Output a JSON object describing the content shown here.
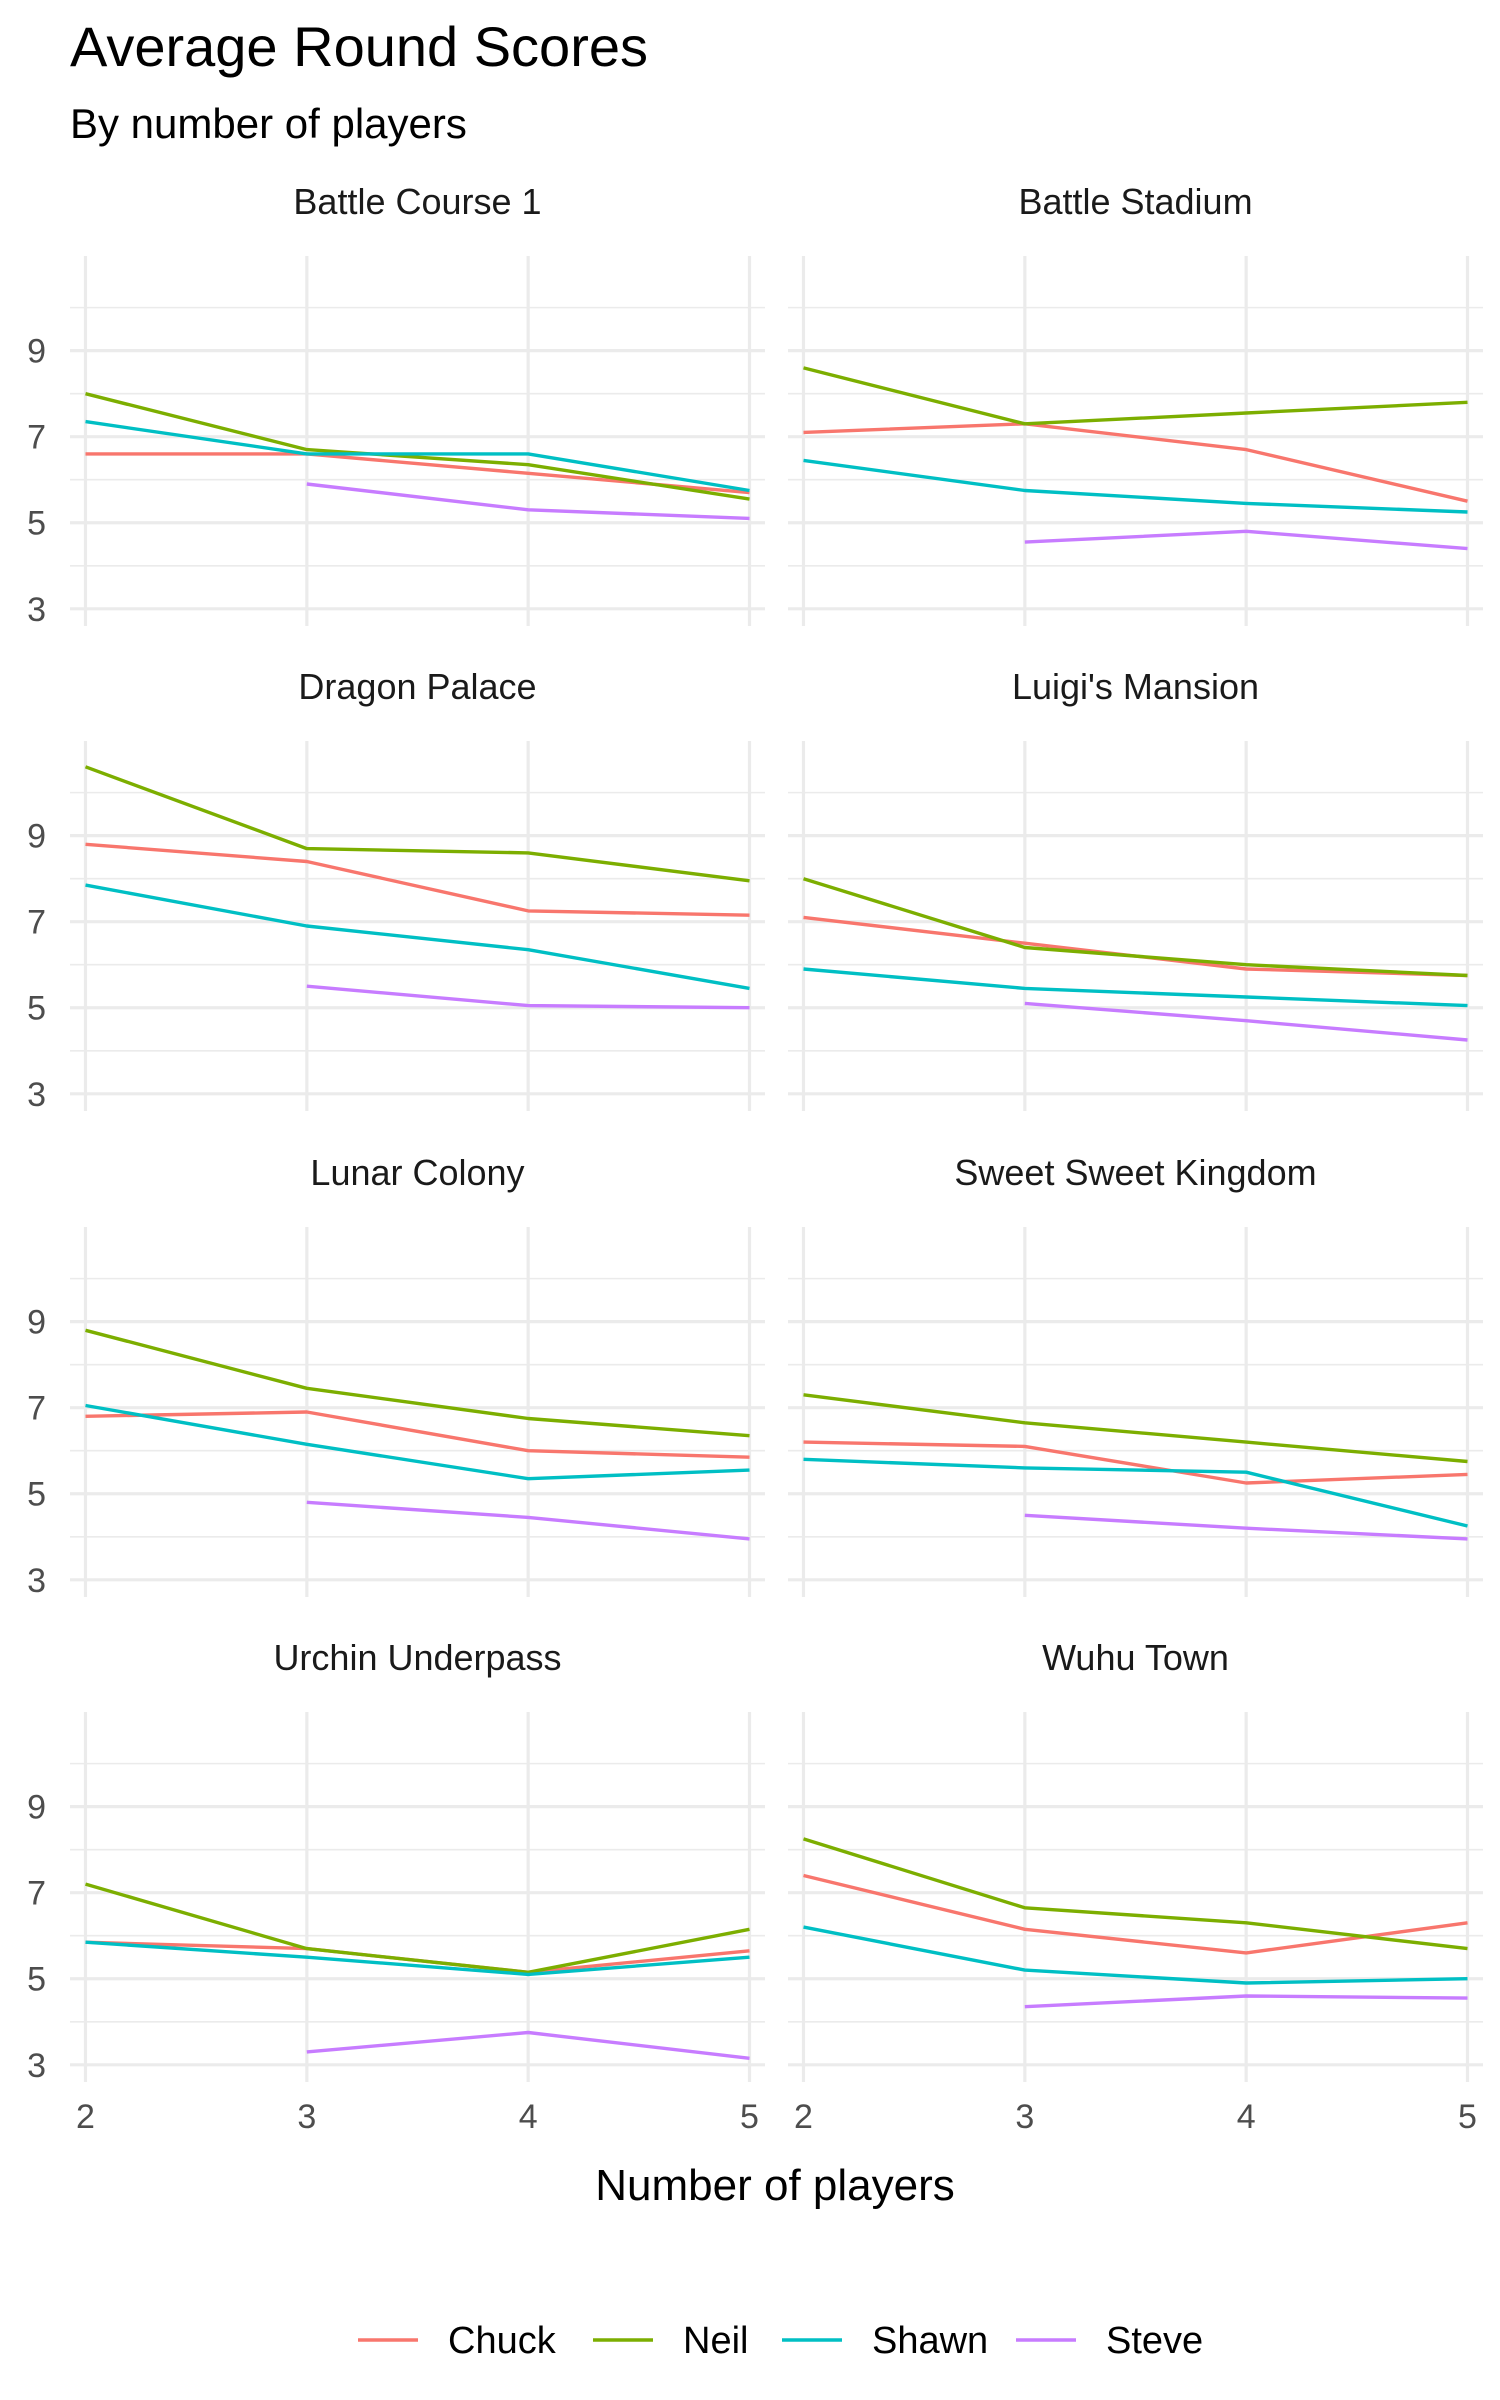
{
  "chart_data": {
    "type": "line",
    "title": "Average Round Scores",
    "subtitle": "By number of players",
    "xlabel": "Number of players",
    "ylabel": "",
    "x_ticks": [
      2,
      3,
      4,
      5
    ],
    "y_ticks": [
      3,
      5,
      7,
      9
    ],
    "xlim": [
      1.93,
      5.07
    ],
    "ylim": [
      2.6,
      11.2
    ],
    "legend_position": "bottom",
    "series_styles": [
      {
        "name": "Chuck",
        "color": "#F8766D"
      },
      {
        "name": "Neil",
        "color": "#7CAE00"
      },
      {
        "name": "Shawn",
        "color": "#00BFC4"
      },
      {
        "name": "Steve",
        "color": "#C77CFF"
      }
    ],
    "panels": [
      {
        "title": "Battle Course 1",
        "series": [
          {
            "name": "Chuck",
            "x": [
              2,
              3,
              4,
              5
            ],
            "y": [
              6.6,
              6.6,
              6.15,
              5.7
            ]
          },
          {
            "name": "Neil",
            "x": [
              2,
              3,
              4,
              5
            ],
            "y": [
              8.0,
              6.7,
              6.35,
              5.55
            ]
          },
          {
            "name": "Shawn",
            "x": [
              2,
              3,
              4,
              5
            ],
            "y": [
              7.35,
              6.6,
              6.6,
              5.75
            ]
          },
          {
            "name": "Steve",
            "x": [
              3,
              4,
              5
            ],
            "y": [
              5.9,
              5.3,
              5.1
            ]
          }
        ]
      },
      {
        "title": "Battle Stadium",
        "series": [
          {
            "name": "Chuck",
            "x": [
              2,
              3,
              4,
              5
            ],
            "y": [
              7.1,
              7.3,
              6.7,
              5.5
            ]
          },
          {
            "name": "Neil",
            "x": [
              2,
              3,
              4,
              5
            ],
            "y": [
              8.6,
              7.3,
              7.55,
              7.8
            ]
          },
          {
            "name": "Shawn",
            "x": [
              2,
              3,
              4,
              5
            ],
            "y": [
              6.45,
              5.75,
              5.45,
              5.25
            ]
          },
          {
            "name": "Steve",
            "x": [
              3,
              4,
              5
            ],
            "y": [
              4.55,
              4.8,
              4.4
            ]
          }
        ]
      },
      {
        "title": "Dragon Palace",
        "series": [
          {
            "name": "Chuck",
            "x": [
              2,
              3,
              4,
              5
            ],
            "y": [
              8.8,
              8.4,
              7.25,
              7.15
            ]
          },
          {
            "name": "Neil",
            "x": [
              2,
              3,
              4,
              5
            ],
            "y": [
              10.6,
              8.7,
              8.6,
              7.95
            ]
          },
          {
            "name": "Shawn",
            "x": [
              2,
              3,
              4,
              5
            ],
            "y": [
              7.85,
              6.9,
              6.35,
              5.45
            ]
          },
          {
            "name": "Steve",
            "x": [
              3,
              4,
              5
            ],
            "y": [
              5.5,
              5.05,
              5.0
            ]
          }
        ]
      },
      {
        "title": "Luigi's Mansion",
        "series": [
          {
            "name": "Chuck",
            "x": [
              2,
              3,
              4,
              5
            ],
            "y": [
              7.1,
              6.5,
              5.9,
              5.75
            ]
          },
          {
            "name": "Neil",
            "x": [
              2,
              3,
              4,
              5
            ],
            "y": [
              8.0,
              6.4,
              6.0,
              5.75
            ]
          },
          {
            "name": "Shawn",
            "x": [
              2,
              3,
              4,
              5
            ],
            "y": [
              5.9,
              5.45,
              5.25,
              5.05
            ]
          },
          {
            "name": "Steve",
            "x": [
              3,
              4,
              5
            ],
            "y": [
              5.1,
              4.7,
              4.25
            ]
          }
        ]
      },
      {
        "title": "Lunar Colony",
        "series": [
          {
            "name": "Chuck",
            "x": [
              2,
              3,
              4,
              5
            ],
            "y": [
              6.8,
              6.9,
              6.0,
              5.85
            ]
          },
          {
            "name": "Neil",
            "x": [
              2,
              3,
              4,
              5
            ],
            "y": [
              8.8,
              7.45,
              6.75,
              6.35
            ]
          },
          {
            "name": "Shawn",
            "x": [
              2,
              3,
              4,
              5
            ],
            "y": [
              7.05,
              6.15,
              5.35,
              5.55
            ]
          },
          {
            "name": "Steve",
            "x": [
              3,
              4,
              5
            ],
            "y": [
              4.8,
              4.45,
              3.95
            ]
          }
        ]
      },
      {
        "title": "Sweet Sweet Kingdom",
        "series": [
          {
            "name": "Chuck",
            "x": [
              2,
              3,
              4,
              5
            ],
            "y": [
              6.2,
              6.1,
              5.25,
              5.45
            ]
          },
          {
            "name": "Neil",
            "x": [
              2,
              3,
              4,
              5
            ],
            "y": [
              7.3,
              6.65,
              6.2,
              5.75
            ]
          },
          {
            "name": "Shawn",
            "x": [
              2,
              3,
              4,
              5
            ],
            "y": [
              5.8,
              5.6,
              5.5,
              4.25
            ]
          },
          {
            "name": "Steve",
            "x": [
              3,
              4,
              5
            ],
            "y": [
              4.5,
              4.2,
              3.95
            ]
          }
        ]
      },
      {
        "title": "Urchin Underpass",
        "series": [
          {
            "name": "Chuck",
            "x": [
              2,
              3,
              4,
              5
            ],
            "y": [
              5.85,
              5.7,
              5.15,
              5.65
            ]
          },
          {
            "name": "Neil",
            "x": [
              2,
              3,
              4,
              5
            ],
            "y": [
              7.2,
              5.7,
              5.15,
              6.15
            ]
          },
          {
            "name": "Shawn",
            "x": [
              2,
              3,
              4,
              5
            ],
            "y": [
              5.85,
              5.5,
              5.1,
              5.5
            ]
          },
          {
            "name": "Steve",
            "x": [
              3,
              4,
              5
            ],
            "y": [
              3.3,
              3.75,
              3.15
            ]
          }
        ]
      },
      {
        "title": "Wuhu Town",
        "series": [
          {
            "name": "Chuck",
            "x": [
              2,
              3,
              4,
              5
            ],
            "y": [
              7.4,
              6.15,
              5.6,
              6.3
            ]
          },
          {
            "name": "Neil",
            "x": [
              2,
              3,
              4,
              5
            ],
            "y": [
              8.25,
              6.65,
              6.3,
              5.7
            ]
          },
          {
            "name": "Shawn",
            "x": [
              2,
              3,
              4,
              5
            ],
            "y": [
              6.2,
              5.2,
              4.9,
              5.0
            ]
          },
          {
            "name": "Steve",
            "x": [
              3,
              4,
              5
            ],
            "y": [
              4.35,
              4.6,
              4.55
            ]
          }
        ]
      }
    ]
  }
}
